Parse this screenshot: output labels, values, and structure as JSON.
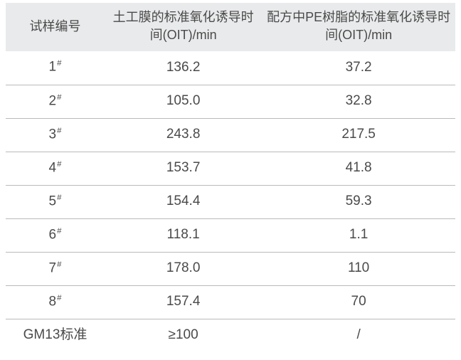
{
  "table": {
    "type": "table",
    "background_color": "#ffffff",
    "header_bg": "#e9eaeb",
    "row_border_color": "#b9babb",
    "text_color": "#4a4a4a",
    "header_fontsize": 18,
    "body_fontsize": 19,
    "columns": [
      {
        "label": "试样编号",
        "width_pct": 22,
        "align": "center"
      },
      {
        "label": "土工膜的标准氧化诱导时间(OIT)/min",
        "width_pct": 35,
        "align": "center"
      },
      {
        "label": "配方中PE树脂的标准氧化诱导时间(OIT)/min",
        "width_pct": 43,
        "align": "center"
      }
    ],
    "rows": [
      {
        "sample": "1",
        "sup": "#",
        "membrane_oit": "136.2",
        "pe_oit": "37.2"
      },
      {
        "sample": "2",
        "sup": "#",
        "membrane_oit": "105.0",
        "pe_oit": "32.8"
      },
      {
        "sample": "3",
        "sup": "#",
        "membrane_oit": "243.8",
        "pe_oit": "217.5"
      },
      {
        "sample": "4",
        "sup": "#",
        "membrane_oit": "153.7",
        "pe_oit": "41.8"
      },
      {
        "sample": "5",
        "sup": "#",
        "membrane_oit": "154.4",
        "pe_oit": "59.3"
      },
      {
        "sample": "6",
        "sup": "#",
        "membrane_oit": "118.1",
        "pe_oit": "1.1"
      },
      {
        "sample": "7",
        "sup": "#",
        "membrane_oit": "178.0",
        "pe_oit": "110"
      },
      {
        "sample": "8",
        "sup": "#",
        "membrane_oit": "157.4",
        "pe_oit": "70"
      },
      {
        "sample": "GM13标准",
        "sup": "",
        "membrane_oit": "≥100",
        "pe_oit": "/"
      }
    ]
  }
}
